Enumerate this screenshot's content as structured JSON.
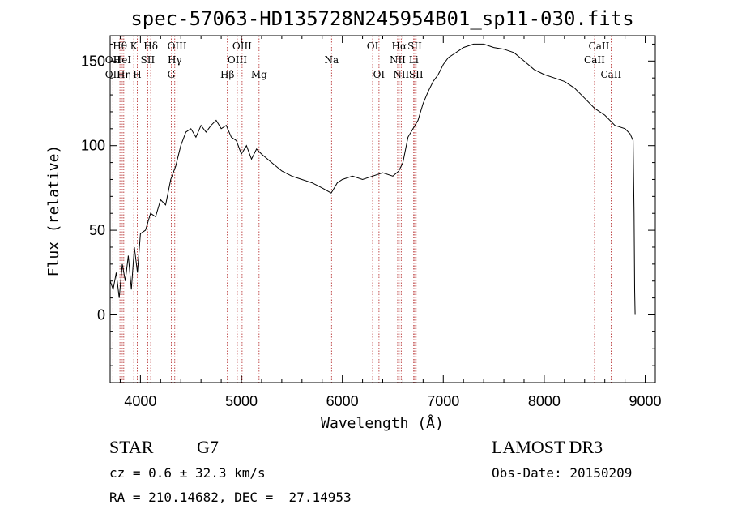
{
  "chart_data": {
    "type": "line",
    "title": "spec-57063-HD135728N245954B01_sp11-030.fits",
    "xlabel": "Wavelength (Å)",
    "ylabel": "Flux (relative)",
    "xlim": [
      3700,
      9100
    ],
    "ylim": [
      -40,
      165
    ],
    "x_ticks": [
      4000,
      5000,
      6000,
      7000,
      8000,
      9000
    ],
    "y_ticks": [
      0,
      50,
      100,
      150
    ],
    "x_tick_labels": [
      "4000",
      "5000",
      "6000",
      "7000",
      "8000",
      "9000"
    ],
    "y_tick_labels": [
      "0",
      "50",
      "100",
      "150"
    ],
    "series": [
      {
        "name": "flux",
        "x": [
          3700,
          3730,
          3760,
          3790,
          3820,
          3850,
          3880,
          3910,
          3940,
          3970,
          4000,
          4050,
          4100,
          4150,
          4200,
          4250,
          4300,
          4350,
          4400,
          4450,
          4500,
          4550,
          4600,
          4650,
          4700,
          4750,
          4800,
          4850,
          4900,
          4950,
          5000,
          5050,
          5100,
          5150,
          5200,
          5300,
          5400,
          5500,
          5600,
          5700,
          5800,
          5890,
          5950,
          6000,
          6100,
          6200,
          6300,
          6400,
          6500,
          6560,
          6600,
          6650,
          6700,
          6750,
          6800,
          6850,
          6900,
          6950,
          7000,
          7050,
          7100,
          7150,
          7200,
          7300,
          7400,
          7500,
          7600,
          7700,
          7800,
          7900,
          8000,
          8100,
          8200,
          8300,
          8400,
          8500,
          8600,
          8700,
          8800,
          8850,
          8880,
          8890,
          8895,
          8900
        ],
        "y": [
          20,
          15,
          25,
          10,
          30,
          20,
          35,
          15,
          40,
          25,
          48,
          50,
          60,
          58,
          68,
          65,
          80,
          88,
          100,
          108,
          110,
          105,
          112,
          108,
          112,
          115,
          110,
          112,
          105,
          103,
          95,
          100,
          92,
          98,
          95,
          90,
          85,
          82,
          80,
          78,
          75,
          72,
          78,
          80,
          82,
          80,
          82,
          84,
          82,
          85,
          90,
          105,
          110,
          115,
          125,
          132,
          138,
          142,
          148,
          152,
          154,
          156,
          158,
          160,
          160,
          158,
          157,
          155,
          150,
          145,
          142,
          140,
          138,
          134,
          128,
          122,
          118,
          112,
          110,
          107,
          103,
          60,
          15,
          0
        ]
      }
    ],
    "lines": [
      {
        "label": "Hθ",
        "x": 3797,
        "row": 0
      },
      {
        "label": "OII",
        "x": 3727,
        "row": 1
      },
      {
        "label": "OII",
        "x": 3727,
        "row": 2
      },
      {
        "label": "HeI",
        "x": 3820,
        "row": 1
      },
      {
        "label": "Hη",
        "x": 3835,
        "row": 2
      },
      {
        "label": "K",
        "x": 3934,
        "row": 0
      },
      {
        "label": "H",
        "x": 3969,
        "row": 2
      },
      {
        "label": "SII",
        "x": 4072,
        "row": 1
      },
      {
        "label": "Hδ",
        "x": 4102,
        "row": 0
      },
      {
        "label": "OIII",
        "x": 4363,
        "row": 0
      },
      {
        "label": "Hγ",
        "x": 4340,
        "row": 1
      },
      {
        "label": "G",
        "x": 4305,
        "row": 2
      },
      {
        "label": "Hβ",
        "x": 4861,
        "row": 2
      },
      {
        "label": "OIII",
        "x": 4959,
        "row": 1
      },
      {
        "label": "OIII",
        "x": 5007,
        "row": 0
      },
      {
        "label": "Mg",
        "x": 5175,
        "row": 2
      },
      {
        "label": "Na",
        "x": 5893,
        "row": 1
      },
      {
        "label": "OI",
        "x": 6300,
        "row": 0
      },
      {
        "label": "OI",
        "x": 6363,
        "row": 2
      },
      {
        "label": "NII",
        "x": 6548,
        "row": 1
      },
      {
        "label": "Hα",
        "x": 6563,
        "row": 0
      },
      {
        "label": "NII",
        "x": 6583,
        "row": 2
      },
      {
        "label": "Li",
        "x": 6707,
        "row": 1
      },
      {
        "label": "SII",
        "x": 6717,
        "row": 0
      },
      {
        "label": "SII",
        "x": 6731,
        "row": 2
      },
      {
        "label": "CaII",
        "x": 8498,
        "row": 1
      },
      {
        "label": "CaII",
        "x": 8542,
        "row": 0
      },
      {
        "label": "CaII",
        "x": 8662,
        "row": 2
      }
    ]
  },
  "info": {
    "object_class": "STAR",
    "subclass": "G7",
    "survey": "LAMOST DR3",
    "cz_line": "cz = 0.6 ± 32.3 km/s",
    "obs_date_line": "Obs-Date: 20150209",
    "radec_line": "RA = 210.14682, DEC =  27.14953"
  },
  "colors": {
    "axis": "#000000",
    "spectrum": "#000000",
    "line_marker": "#b22222",
    "background": "#ffffff"
  }
}
